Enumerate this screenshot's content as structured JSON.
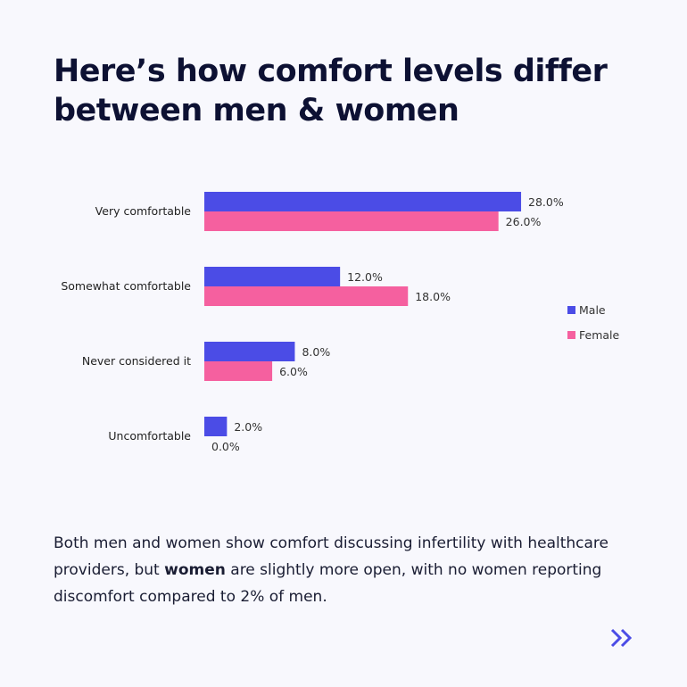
{
  "title": "Here’s how comfort levels differ between men & women",
  "description": {
    "before": "Both men and women show comfort discussing infertility with healthcare providers, but ",
    "bold": "women",
    "after": " are slightly more open, with no women reporting discomfort compared to 2% of men."
  },
  "next_icon": "double-chevron-right-icon",
  "colors": {
    "male": "#4b4ce6",
    "female": "#f5609f",
    "accent": "#4b4ce6"
  },
  "chart_data": {
    "type": "bar",
    "orientation": "horizontal",
    "categories": [
      "Very comfortable",
      "Somewhat comfortable",
      "Never considered it",
      "Uncomfortable"
    ],
    "series": [
      {
        "name": "Male",
        "values": [
          28.0,
          12.0,
          8.0,
          2.0
        ],
        "color": "#4b4ce6"
      },
      {
        "name": "Female",
        "values": [
          26.0,
          18.0,
          6.0,
          0.0
        ],
        "color": "#f5609f"
      }
    ],
    "value_format": "%",
    "legend": "right",
    "grid": false
  }
}
